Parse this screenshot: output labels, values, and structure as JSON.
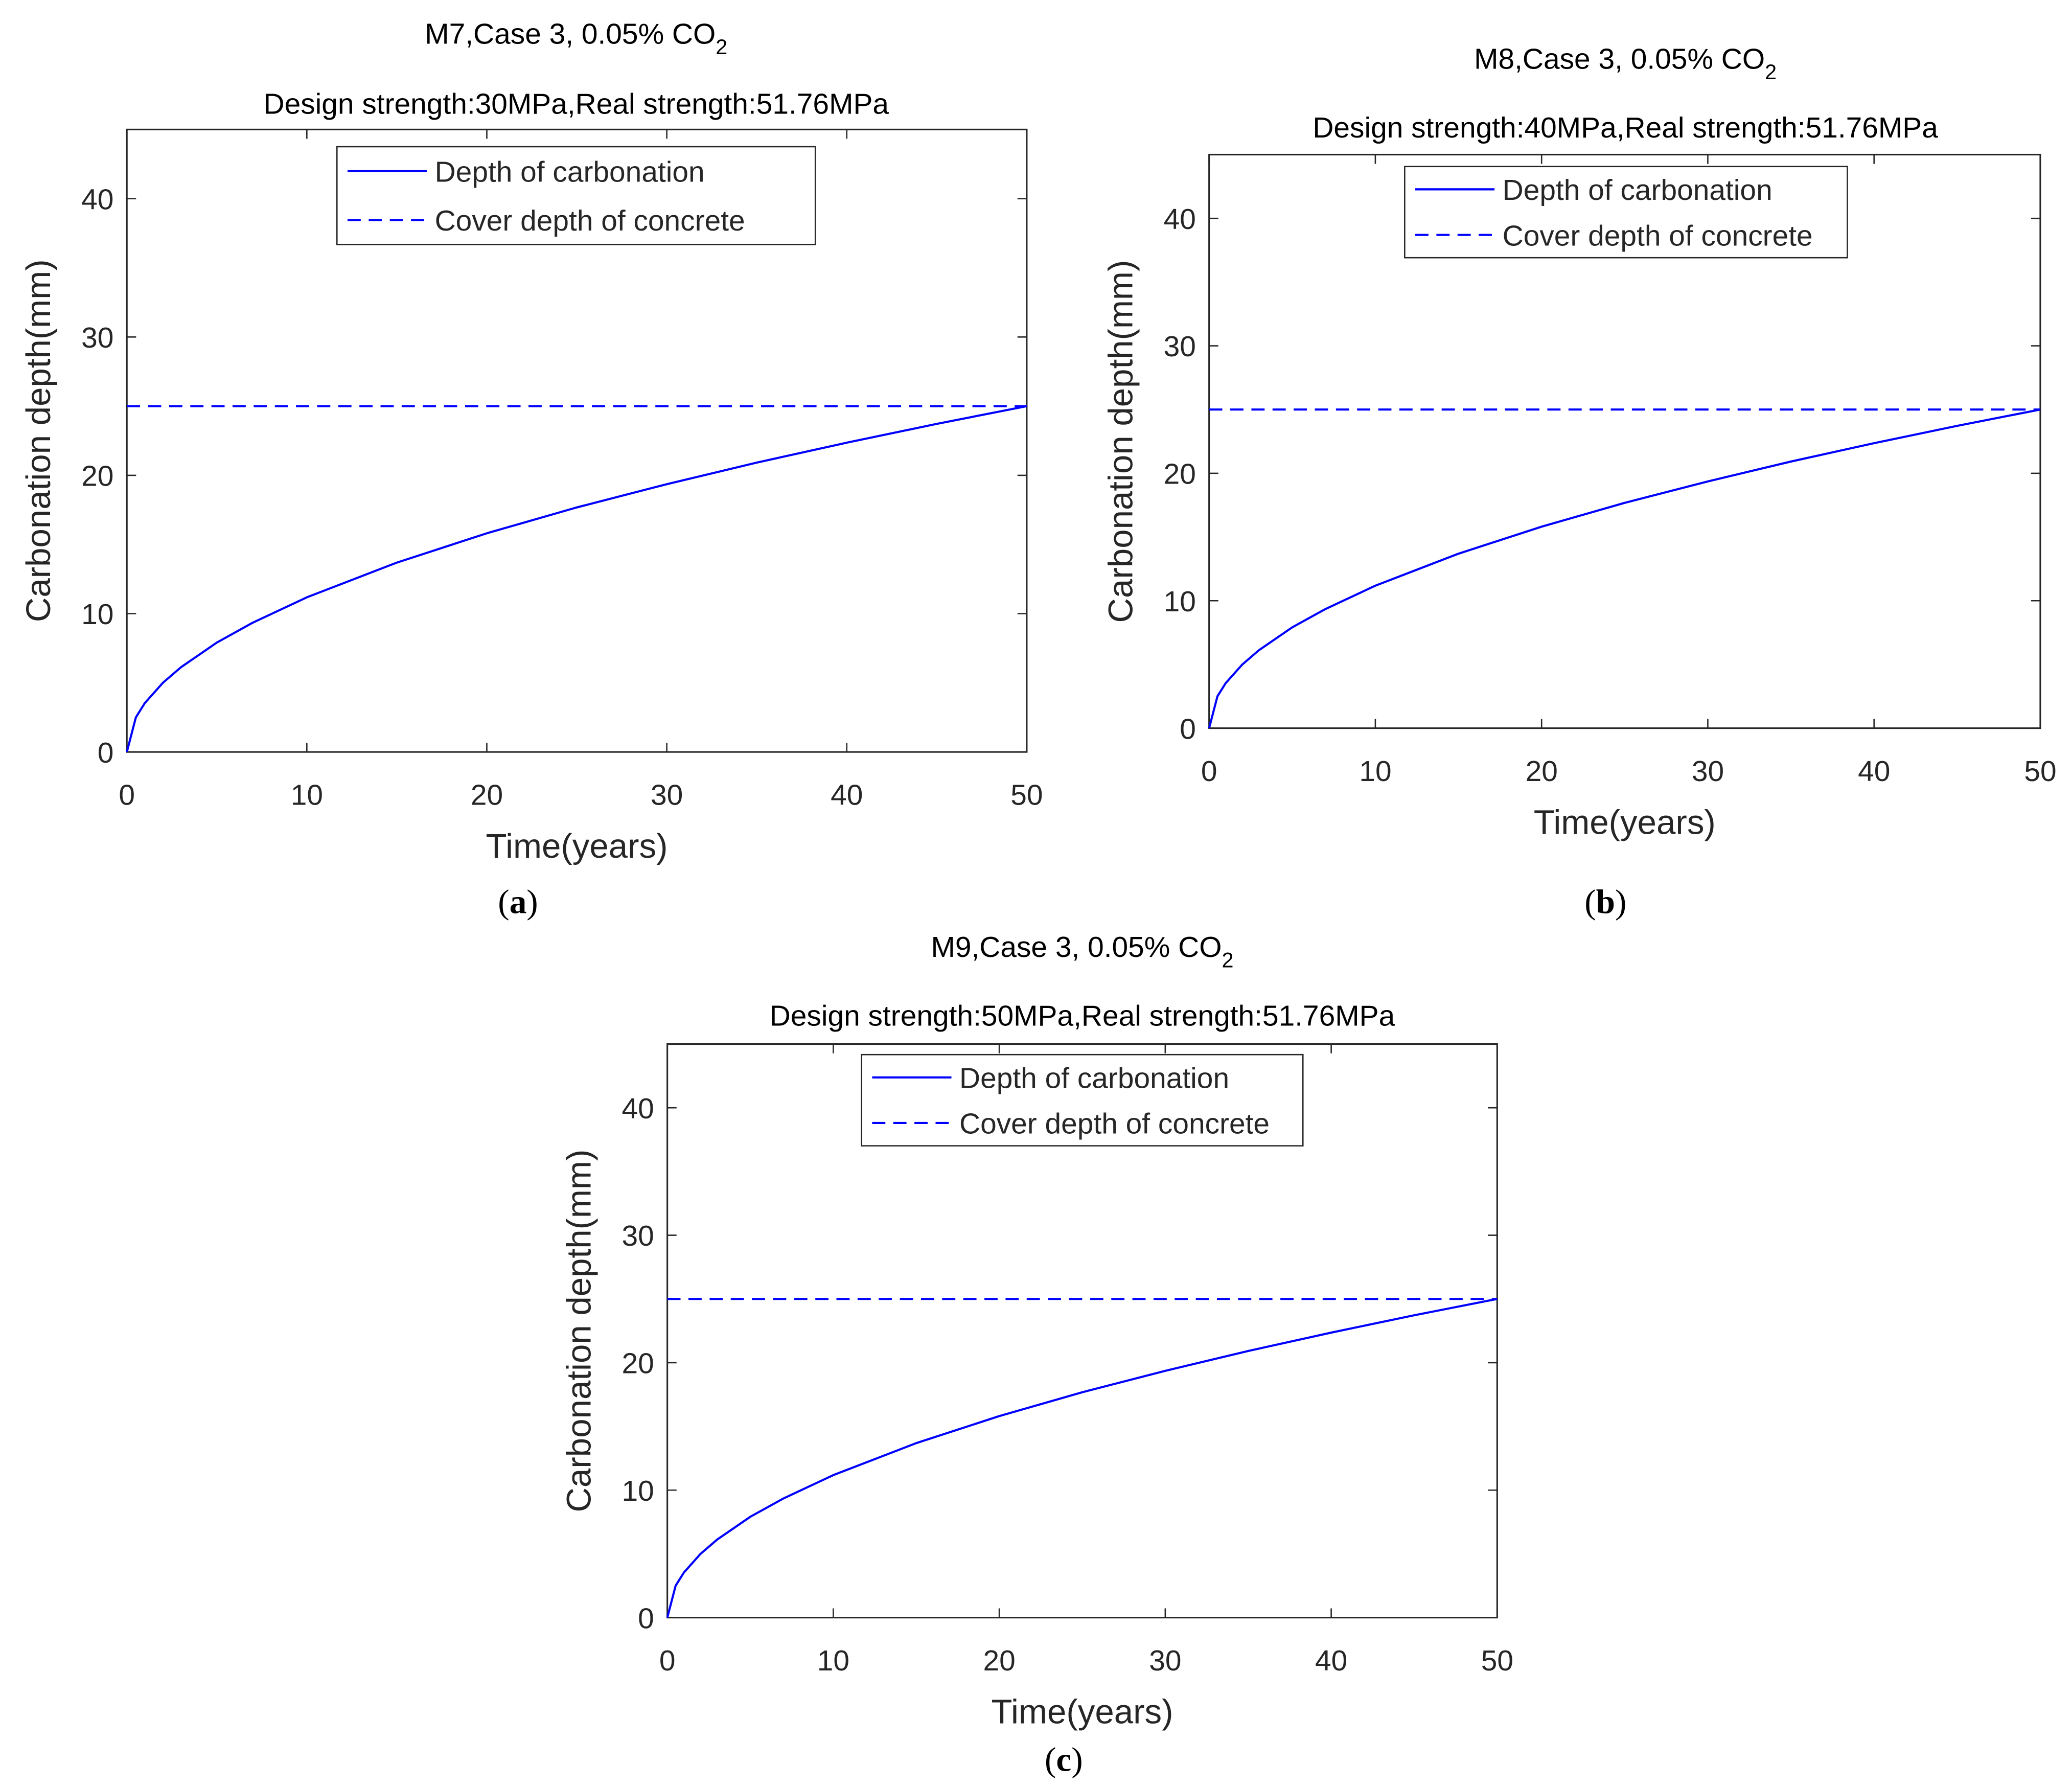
{
  "colors": {
    "series": "#0000ff",
    "axes": "#262626",
    "text": "#000000"
  },
  "chart_data": [
    {
      "type": "line",
      "title": "M7,Case 3, 0.05% CO",
      "title_subscript": "2",
      "subtitle": "Design strength:30MPa,Real strength:51.76MPa",
      "xlabel": "Time(years)",
      "ylabel": "Carbonation depth(mm)",
      "xlim": [
        0,
        50
      ],
      "ylim": [
        0,
        45
      ],
      "xticks": [
        0,
        10,
        20,
        30,
        40,
        50
      ],
      "yticks": [
        0,
        10,
        20,
        30,
        40
      ],
      "grid": false,
      "legend_position": "top-center",
      "series": [
        {
          "name": "Depth of carbonation",
          "style": "solid",
          "x": [
            0,
            0.5,
            1,
            2,
            3,
            5,
            7,
            10,
            15,
            20,
            25,
            30,
            35,
            40,
            45,
            50
          ],
          "y": [
            0,
            2.5,
            3.54,
            5.0,
            6.12,
            7.91,
            9.35,
            11.18,
            13.69,
            15.81,
            17.68,
            19.36,
            20.92,
            22.36,
            23.72,
            25.0
          ]
        },
        {
          "name": "Cover depth of concrete",
          "style": "dashed",
          "x": [
            0,
            50
          ],
          "y": [
            25,
            25
          ]
        }
      ],
      "caption": "(a)"
    },
    {
      "type": "line",
      "title": "M8,Case 3, 0.05% CO",
      "title_subscript": "2",
      "subtitle": "Design strength:40MPa,Real strength:51.76MPa",
      "xlabel": "Time(years)",
      "ylabel": "Carbonation depth(mm)",
      "xlim": [
        0,
        50
      ],
      "ylim": [
        0,
        45
      ],
      "xticks": [
        0,
        10,
        20,
        30,
        40,
        50
      ],
      "yticks": [
        0,
        10,
        20,
        30,
        40
      ],
      "grid": false,
      "legend_position": "top-center",
      "series": [
        {
          "name": "Depth of carbonation",
          "style": "solid",
          "x": [
            0,
            0.5,
            1,
            2,
            3,
            5,
            7,
            10,
            15,
            20,
            25,
            30,
            35,
            40,
            45,
            50
          ],
          "y": [
            0,
            2.5,
            3.54,
            5.0,
            6.12,
            7.91,
            9.35,
            11.18,
            13.69,
            15.81,
            17.68,
            19.36,
            20.92,
            22.36,
            23.72,
            25.0
          ]
        },
        {
          "name": "Cover depth of concrete",
          "style": "dashed",
          "x": [
            0,
            50
          ],
          "y": [
            25,
            25
          ]
        }
      ],
      "caption": "(b)"
    },
    {
      "type": "line",
      "title": "M9,Case 3, 0.05% CO",
      "title_subscript": "2",
      "subtitle": "Design strength:50MPa,Real strength:51.76MPa",
      "xlabel": "Time(years)",
      "ylabel": "Carbonation depth(mm)",
      "xlim": [
        0,
        50
      ],
      "ylim": [
        0,
        45
      ],
      "xticks": [
        0,
        10,
        20,
        30,
        40,
        50
      ],
      "yticks": [
        0,
        10,
        20,
        30,
        40
      ],
      "grid": false,
      "legend_position": "top-center",
      "series": [
        {
          "name": "Depth of carbonation",
          "style": "solid",
          "x": [
            0,
            0.5,
            1,
            2,
            3,
            5,
            7,
            10,
            15,
            20,
            25,
            30,
            35,
            40,
            45,
            50
          ],
          "y": [
            0,
            2.5,
            3.54,
            5.0,
            6.12,
            7.91,
            9.35,
            11.18,
            13.69,
            15.81,
            17.68,
            19.36,
            20.92,
            22.36,
            23.72,
            25.0
          ]
        },
        {
          "name": "Cover depth of concrete",
          "style": "dashed",
          "x": [
            0,
            50
          ],
          "y": [
            25,
            25
          ]
        }
      ],
      "caption": "(c)"
    }
  ]
}
